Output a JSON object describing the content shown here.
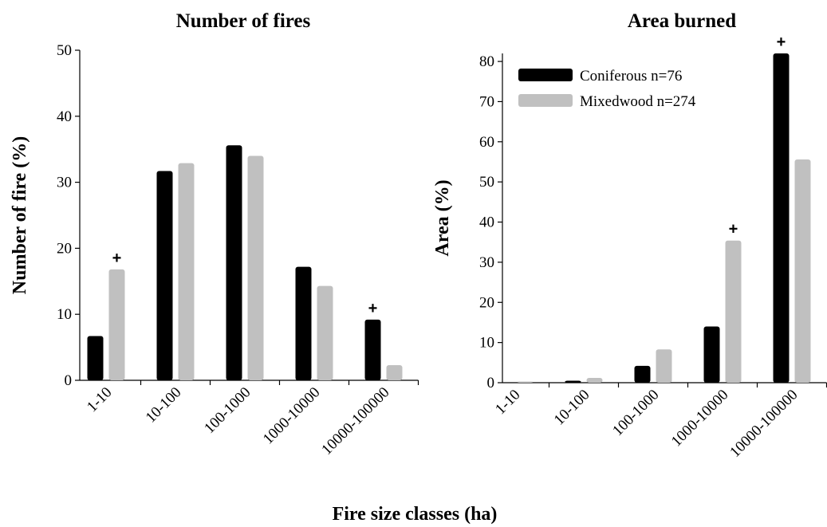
{
  "xlabel": "Fire size classes (ha)",
  "chart_data": [
    {
      "type": "bar",
      "title": "Number of fires",
      "ylabel": "Number of fire (%)",
      "categories": [
        "1-10",
        "10-100",
        "100-1000",
        "1000-10000",
        "10000-100000"
      ],
      "series": [
        {
          "name": "Coniferous n=76",
          "color": "#000000",
          "values": [
            6.7,
            31.7,
            35.6,
            17.2,
            9.2
          ]
        },
        {
          "name": "Mixedwood n=274",
          "color": "#c0c0c0",
          "values": [
            16.8,
            32.9,
            34.0,
            14.3,
            2.3
          ]
        }
      ],
      "ylim": [
        0,
        50
      ],
      "yticks": [
        0,
        10,
        20,
        30,
        40,
        50
      ],
      "annotations": [
        {
          "text": "+",
          "category": "1-10",
          "series": "Mixedwood n=274"
        },
        {
          "text": "+",
          "category": "10000-100000",
          "series": "Coniferous n=76"
        }
      ]
    },
    {
      "type": "bar",
      "title": "Area burned",
      "ylabel": "Area (%)",
      "categories": [
        "1-10",
        "10-100",
        "100-1000",
        "1000-10000",
        "10000-100000"
      ],
      "series": [
        {
          "name": "Coniferous n=76",
          "color": "#000000",
          "values": [
            0,
            0.5,
            4.2,
            14.0,
            82.0
          ]
        },
        {
          "name": "Mixedwood n=274",
          "color": "#c0c0c0",
          "values": [
            0.3,
            1.2,
            8.3,
            35.4,
            55.6
          ]
        }
      ],
      "ylim": [
        0,
        82
      ],
      "yticks": [
        0,
        10,
        20,
        30,
        40,
        50,
        60,
        70,
        80
      ],
      "legend": "upper left",
      "annotations": [
        {
          "text": "+",
          "category": "1000-10000",
          "series": "Mixedwood n=274"
        },
        {
          "text": "+",
          "category": "10000-100000",
          "series": "Coniferous n=76"
        }
      ]
    }
  ]
}
